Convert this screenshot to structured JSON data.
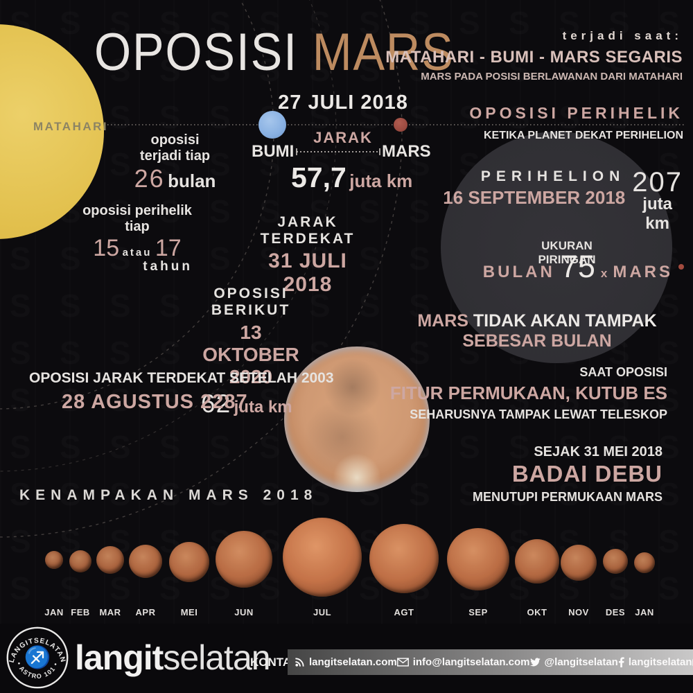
{
  "title": {
    "part1": "OPOSISI",
    "part2": "MARS"
  },
  "occurs_when": {
    "heading": "terjadi saat:",
    "line1": "MATAHARI - BUMI - MARS SEGARIS",
    "line2": "MARS PADA POSISI BERLAWANAN DARI MATAHARI"
  },
  "sun_label": "MATAHARI",
  "opposition_interval": {
    "line1": "oposisi terjadi tiap",
    "value": "26",
    "unit": "bulan"
  },
  "perihelic_interval": {
    "line1": "oposisi perihelik tiap",
    "v1": "15",
    "conj": "atau",
    "v2": "17",
    "unit": "tahun"
  },
  "opposition_2018": {
    "date": "27 JULI 2018",
    "earth_label": "BUMI",
    "mars_label": "MARS",
    "distance_label": "JARAK",
    "distance_value": "57,7",
    "distance_unit": "juta km"
  },
  "closest_approach": {
    "heading": "JARAK TERDEKAT",
    "date": "31 JULI 2018"
  },
  "next_opposition": {
    "heading": "OPOSISI BERIKUT",
    "date": "13 OKTOBER 2020",
    "value": "62",
    "unit": "juta km"
  },
  "closest_after_2003": {
    "heading": "OPOSISI JARAK TERDEKAT SETELAH 2003",
    "date": "28 AGUSTUS 2287"
  },
  "perihelic_opposition": {
    "heading": "OPOSISI PERIHELIK",
    "sub": "KETIKA PLANET DEKAT PERIHELION"
  },
  "perihelion": {
    "label": "PERIHELION",
    "date": "16 SEPTEMBER 2018",
    "value": "207",
    "unit": "juta km"
  },
  "disk_size": {
    "heading": "UKURAN PIRINGAN",
    "moon": "BULAN",
    "value": "75",
    "times": "x",
    "mars": "MARS"
  },
  "not_as_big": {
    "pre": "MARS ",
    "mid": "TIDAK AKAN TAMPAK",
    "post": " SEBESAR BULAN"
  },
  "at_opposition": {
    "line1": "SAAT OPOSISI",
    "line2": "FITUR PERMUKAAN, KUTUB ES",
    "line3": "SEHARUSNYA TAMPAK LEWAT TELESKOP"
  },
  "dust_storm": {
    "line1": "SEJAK 31 MEI 2018",
    "line2": "BADAI DEBU",
    "line3": "MENUTUPI PERMUKAAN MARS"
  },
  "appearance": {
    "heading": "KENAMPAKAN MARS 2018",
    "months": [
      "JAN",
      "FEB",
      "MAR",
      "APR",
      "MEI",
      "JUN",
      "JUL",
      "AGT",
      "SEP",
      "OKT",
      "NOV",
      "DES",
      "JAN"
    ]
  },
  "footer": {
    "logo_ring_top": "LANGITSELATAN",
    "logo_ring_bottom": "ASTRO 101",
    "brand_bold": "langit",
    "brand_light": "selatan",
    "contact_label": "KONTAK:",
    "website": "langitselatan.com",
    "email": "info@langitselatan.com",
    "twitter": "@langitselatan",
    "facebook": "langitselatan",
    "instagram": "langitselatanmedia"
  },
  "colors": {
    "accent_rose": "#cda7a2",
    "accent_tan": "#bd8b60",
    "sun_yellow": "#e2c04d",
    "earth_blue": "#88b0e2",
    "mars_red": "#9a4a40"
  }
}
